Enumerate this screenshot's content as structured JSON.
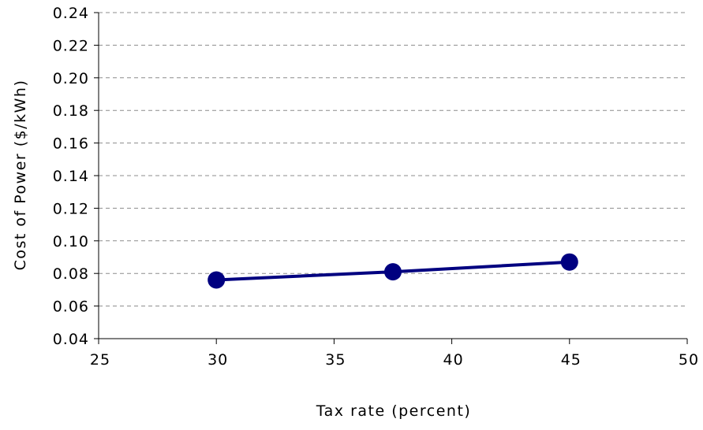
{
  "chart_data": {
    "type": "line",
    "title": "",
    "xlabel": "Tax rate (percent)",
    "ylabel": "Cost of Power ($/kWh)",
    "xlim": [
      25,
      50
    ],
    "ylim": [
      0.04,
      0.24
    ],
    "x_ticks": [
      "25",
      "30",
      "35",
      "40",
      "45",
      "50"
    ],
    "y_ticks": [
      "0.04",
      "0.06",
      "0.08",
      "0.10",
      "0.12",
      "0.14",
      "0.16",
      "0.18",
      "0.20",
      "0.22",
      "0.24"
    ],
    "grid": "horizontal dashed",
    "legend": "none",
    "series": [
      {
        "x": [
          30,
          37.5,
          45
        ],
        "y": [
          0.076,
          0.081,
          0.087
        ],
        "color": "#000080"
      }
    ]
  }
}
